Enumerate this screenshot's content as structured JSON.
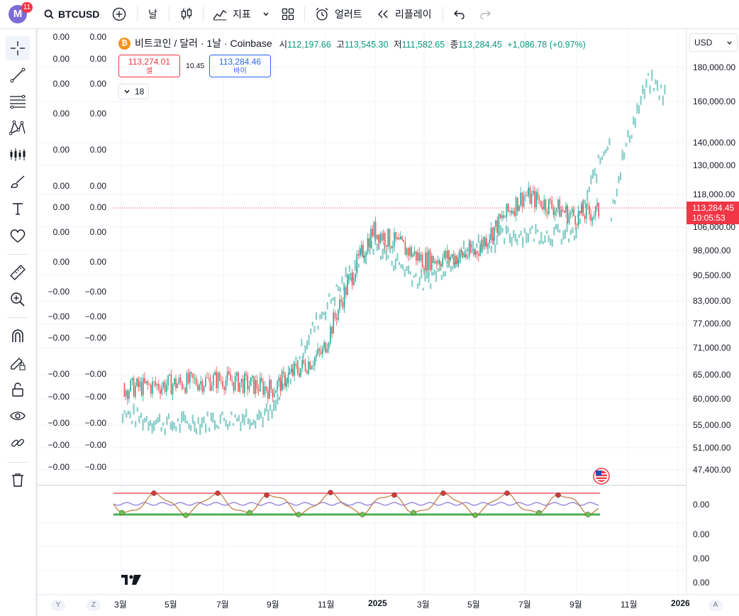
{
  "toolbar": {
    "avatar_letter": "M",
    "notification_count": "11",
    "symbol": "BTCUSD",
    "interval": "날",
    "indicators_label": "지표",
    "alert_label": "얼러트",
    "replay_label": "리플레이"
  },
  "legend": {
    "title": "비트코인 / 달러 · 1날 · Coinbase",
    "open_label": "시",
    "open": "112,197.66",
    "high_label": "고",
    "high": "113,545.30",
    "low_label": "저",
    "low": "111,582.65",
    "close_label": "종",
    "close": "113,284.45",
    "change": "+1,086.78 (+0.97%)",
    "sell_price": "113,274.01",
    "sell_label": "셀",
    "spread": "10.45",
    "buy_price": "113,284.46",
    "buy_label": "바이",
    "indicators_count": "18"
  },
  "currency": "USD",
  "price_axis": [
    "180,000.00",
    "160,000.00",
    "140,000.00",
    "130,000.00",
    "118,000.00",
    "106,000.00",
    "98,000.00",
    "90,500.00",
    "83,000.00",
    "77,000.00",
    "71,000.00",
    "65,000.00",
    "60,000.00",
    "55,000.00",
    "51,000.00",
    "47,400.00"
  ],
  "last_price": {
    "price": "113,284.45",
    "countdown": "10:05:53"
  },
  "left_values": [
    [
      "0.00",
      "0.00"
    ],
    [
      "0.00",
      "0.00"
    ],
    [
      "0.00",
      "0.00"
    ],
    [
      "0.00",
      "0.00"
    ],
    [
      "0.00",
      "0.00"
    ],
    [
      "0.00",
      "0.00"
    ],
    [
      "0.00",
      "0.00"
    ],
    [
      "0.00",
      "0.00"
    ],
    [
      "0.00",
      "0.00"
    ],
    [
      "−0.00",
      "−0.00"
    ],
    [
      "−0.00",
      "−0.00"
    ],
    [
      "−0.00",
      "−0.00"
    ],
    [
      "−0.00",
      "−0.00"
    ],
    [
      "−0.00",
      "−0.00"
    ],
    [
      "−0.00",
      "−0.00"
    ],
    [
      "−0.00",
      "−0.00"
    ],
    [
      "−0.00",
      "−0.00"
    ]
  ],
  "indicator_axis": [
    "0.00",
    "0.00",
    "0.00",
    "0.00"
  ],
  "time_axis": [
    "3월",
    "5월",
    "7월",
    "9월",
    "11월",
    "2025",
    "3월",
    "5월",
    "7월",
    "9월",
    "11월",
    "2026"
  ],
  "scale_buttons": [
    "Y",
    "Z",
    "A"
  ],
  "chart_data": {
    "type": "line",
    "x": [
      "2024-03",
      "2024-05",
      "2024-07",
      "2024-09",
      "2024-11",
      "2025-01",
      "2025-03",
      "2025-05",
      "2025-07",
      "2025-09",
      "2025-11"
    ],
    "series": [
      {
        "values": [
          62000,
          63000,
          64000,
          62000,
          70000,
          105000,
          95000,
          97000,
          118000,
          110000,
          113284
        ]
      },
      {
        "values": [
          57000,
          55000,
          56000,
          57000,
          80000,
          100000,
          88000,
          100000,
          104000,
          103000,
          160000
        ]
      }
    ],
    "y_scale": "log",
    "ylim": [
      47400,
      185000
    ],
    "colors": {
      "up": "#26a69a",
      "down": "#ef5350",
      "overlay": "#26a69a",
      "last_price": "#f23645"
    }
  }
}
